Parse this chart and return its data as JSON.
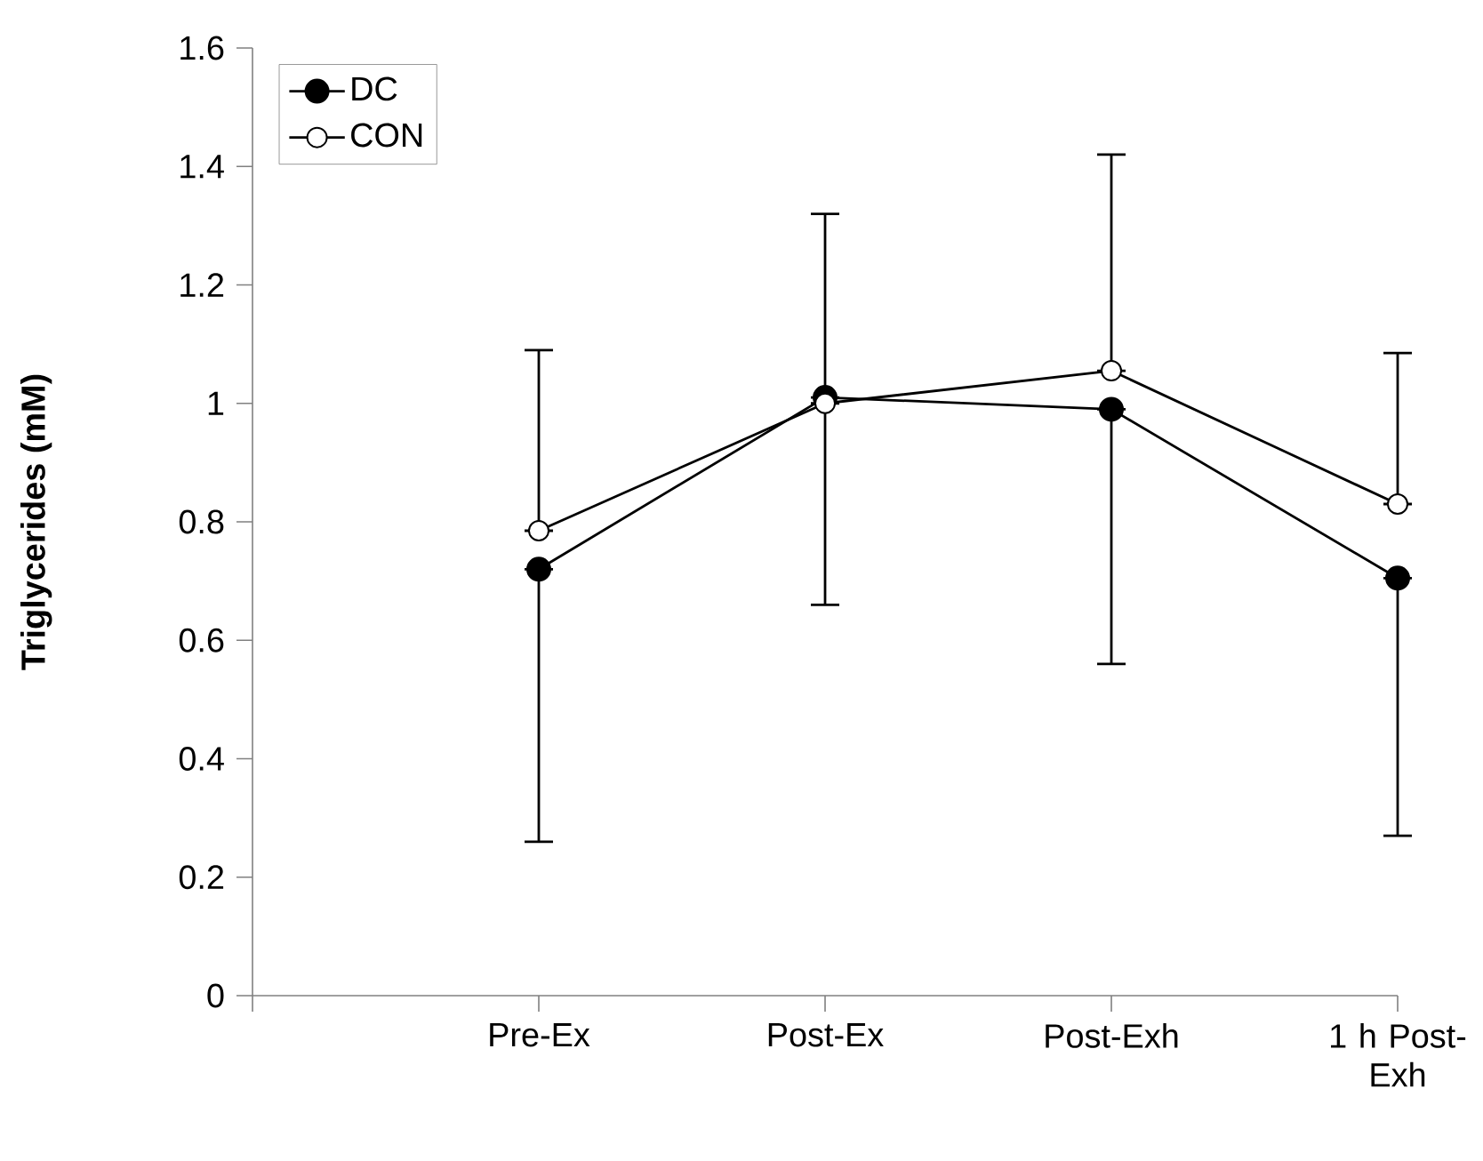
{
  "chart_data": {
    "type": "line",
    "ylabel": "Triglycerides (mM)",
    "categories": [
      null,
      "Pre-Ex",
      "Post-Ex",
      "Post-Exh",
      "1 h Post-Exh"
    ],
    "series": [
      {
        "name": "DC",
        "color": "#000000",
        "values": [
          null,
          0.72,
          1.01,
          0.99,
          0.705
        ],
        "errors": [
          null,
          [
            0.26,
            0.72
          ],
          [
            0.66,
            1.01
          ],
          [
            0.56,
            0.99
          ],
          [
            0.27,
            0.705
          ]
        ]
      },
      {
        "name": "CON",
        "color": "#000000",
        "values": [
          null,
          0.785,
          1.0,
          1.055,
          0.83
        ],
        "errors": [
          null,
          [
            0.785,
            1.09
          ],
          [
            1.0,
            1.32
          ],
          [
            1.055,
            1.42
          ],
          [
            0.83,
            1.085
          ]
        ]
      }
    ],
    "ylim": [
      0,
      1.6
    ],
    "yticks": [
      0,
      0.2,
      0.4,
      0.6,
      0.8,
      1,
      1.2,
      1.4,
      1.6
    ],
    "grid": false,
    "legend": "top left",
    "marker": "circle",
    "line_style": "solid"
  }
}
